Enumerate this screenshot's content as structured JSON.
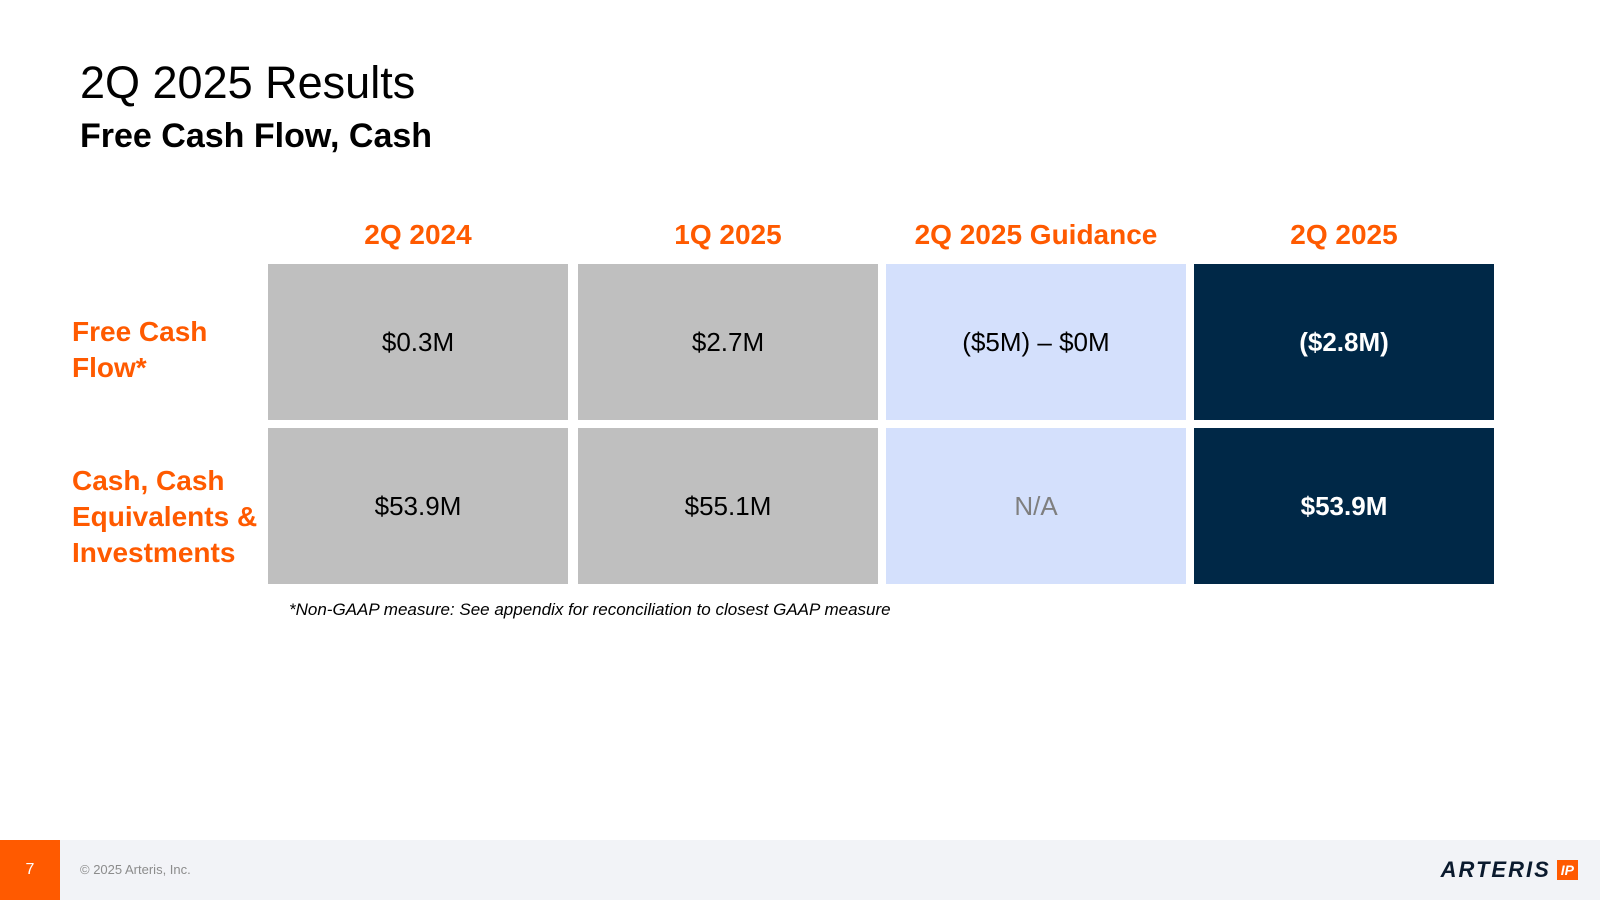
{
  "title": "2Q 2025 Results",
  "subtitle": "Free Cash Flow, Cash",
  "columns": [
    "2Q 2024",
    "1Q 2025",
    "2Q 2025 Guidance",
    "2Q 2025"
  ],
  "rows": [
    {
      "label_lines": [
        "Free Cash",
        "Flow*"
      ],
      "values": [
        "$0.3M",
        "$2.7M",
        "($5M) – $0M",
        "($2.8M)"
      ]
    },
    {
      "label_lines": [
        "Cash, Cash",
        "Equivalents &",
        "Investments"
      ],
      "values": [
        "$53.9M",
        "$55.1M",
        "N/A",
        "$53.9M"
      ]
    }
  ],
  "footnote": "*Non-GAAP measure: See appendix for reconciliation to closest GAAP measure",
  "footer": {
    "page_number": "7",
    "copyright": "© 2025 Arteris, Inc.",
    "logo_text": "ARTERIS",
    "logo_badge": "IP"
  },
  "colors": {
    "accent": "#FF5A00",
    "historic_cell": "#BFBFBF",
    "guidance_cell": "#D4E0FC",
    "current_cell": "#002847"
  }
}
